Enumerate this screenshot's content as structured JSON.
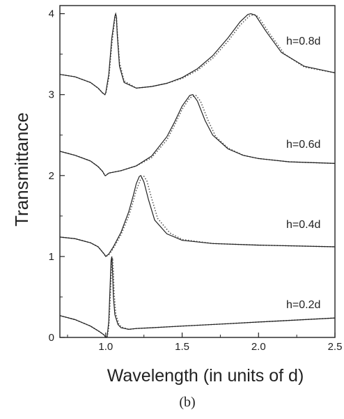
{
  "chart_data": {
    "type": "line",
    "xlabel": "Wavelength (in units of d)",
    "ylabel": "Transmittance",
    "xlim": [
      0.7,
      2.5
    ],
    "ylim": [
      0,
      4.1
    ],
    "x_ticks": [
      1.0,
      1.5,
      2.0,
      2.5
    ],
    "x_tick_labels": [
      "1.0",
      "1.5",
      "2.0",
      "2.5"
    ],
    "y_ticks": [
      0,
      1,
      2,
      3,
      4
    ],
    "y_tick_labels": [
      "0",
      "1",
      "2",
      "3",
      "4"
    ],
    "panel_label": "(b)",
    "grid": false,
    "styles": {
      "solid": "#222222",
      "dotted": "#555555"
    },
    "series": [
      {
        "label": "h=0.2d",
        "solid": {
          "x": [
            0.7,
            0.8,
            0.9,
            0.96,
            0.99,
            1.0,
            1.005,
            1.01,
            1.02,
            1.03,
            1.035,
            1.04,
            1.045,
            1.05,
            1.06,
            1.08,
            1.1,
            1.15,
            1.2,
            1.3,
            1.5,
            1.8,
            2.0,
            2.2,
            2.5
          ],
          "y": [
            0.27,
            0.22,
            0.14,
            0.07,
            0.03,
            0.0,
            0.0,
            0.02,
            0.2,
            0.7,
            0.95,
            1.0,
            0.8,
            0.5,
            0.28,
            0.16,
            0.12,
            0.1,
            0.11,
            0.12,
            0.14,
            0.17,
            0.19,
            0.21,
            0.24
          ]
        },
        "dotted": {
          "x": [
            0.7,
            0.8,
            0.9,
            0.96,
            0.99,
            1.0,
            1.005,
            1.01,
            1.02,
            1.03,
            1.04,
            1.045,
            1.05,
            1.055,
            1.065,
            1.085,
            1.1,
            1.15,
            1.2,
            1.3,
            1.5,
            1.8,
            2.0,
            2.2,
            2.5
          ],
          "y": [
            0.27,
            0.22,
            0.14,
            0.07,
            0.03,
            0.0,
            0.0,
            0.01,
            0.12,
            0.5,
            0.92,
            0.98,
            0.82,
            0.55,
            0.3,
            0.17,
            0.13,
            0.1,
            0.11,
            0.12,
            0.14,
            0.17,
            0.19,
            0.21,
            0.24
          ]
        }
      },
      {
        "label": "h=0.4d",
        "solid": {
          "x": [
            0.7,
            0.8,
            0.9,
            0.95,
            0.99,
            1.0,
            1.02,
            1.05,
            1.1,
            1.15,
            1.18,
            1.2,
            1.22,
            1.23,
            1.25,
            1.28,
            1.32,
            1.4,
            1.5,
            1.7,
            2.0,
            2.5
          ],
          "y": [
            1.24,
            1.22,
            1.17,
            1.12,
            1.03,
            1.0,
            1.03,
            1.12,
            1.3,
            1.55,
            1.75,
            1.9,
            1.99,
            2.0,
            1.92,
            1.7,
            1.45,
            1.28,
            1.2,
            1.16,
            1.14,
            1.12
          ]
        },
        "dotted": {
          "x": [
            0.7,
            0.8,
            0.9,
            0.95,
            0.99,
            1.0,
            1.02,
            1.05,
            1.1,
            1.15,
            1.18,
            1.2,
            1.23,
            1.25,
            1.27,
            1.3,
            1.34,
            1.42,
            1.5,
            1.7,
            2.0,
            2.5
          ],
          "y": [
            1.24,
            1.22,
            1.17,
            1.12,
            1.03,
            1.0,
            1.02,
            1.1,
            1.27,
            1.5,
            1.68,
            1.82,
            1.96,
            1.99,
            1.93,
            1.72,
            1.47,
            1.29,
            1.21,
            1.16,
            1.14,
            1.12
          ]
        }
      },
      {
        "label": "h=0.6d",
        "solid": {
          "x": [
            0.7,
            0.8,
            0.9,
            0.95,
            0.98,
            0.995,
            1.0,
            1.02,
            1.1,
            1.2,
            1.3,
            1.4,
            1.45,
            1.5,
            1.55,
            1.57,
            1.6,
            1.65,
            1.7,
            1.8,
            1.9,
            2.0,
            2.2,
            2.5
          ],
          "y": [
            2.3,
            2.25,
            2.18,
            2.11,
            2.05,
            2.0,
            2.0,
            2.03,
            2.06,
            2.12,
            2.24,
            2.48,
            2.66,
            2.86,
            2.99,
            3.0,
            2.92,
            2.68,
            2.5,
            2.33,
            2.25,
            2.21,
            2.17,
            2.15
          ]
        },
        "dotted": {
          "x": [
            0.7,
            0.8,
            0.9,
            0.95,
            0.98,
            0.995,
            1.0,
            1.02,
            1.1,
            1.2,
            1.3,
            1.4,
            1.45,
            1.5,
            1.55,
            1.59,
            1.62,
            1.67,
            1.72,
            1.8,
            1.9,
            2.0,
            2.2,
            2.5
          ],
          "y": [
            2.3,
            2.25,
            2.18,
            2.11,
            2.05,
            2.0,
            2.0,
            2.03,
            2.06,
            2.12,
            2.22,
            2.44,
            2.62,
            2.82,
            2.96,
            2.99,
            2.92,
            2.68,
            2.48,
            2.34,
            2.25,
            2.21,
            2.17,
            2.15
          ]
        }
      },
      {
        "label": "h=0.8d",
        "solid": {
          "x": [
            0.7,
            0.8,
            0.9,
            0.95,
            0.98,
            0.995,
            1.0,
            1.02,
            1.04,
            1.06,
            1.065,
            1.07,
            1.075,
            1.09,
            1.12,
            1.2,
            1.3,
            1.4,
            1.5,
            1.6,
            1.7,
            1.8,
            1.88,
            1.93,
            1.95,
            1.98,
            2.05,
            2.15,
            2.3,
            2.5
          ],
          "y": [
            3.25,
            3.22,
            3.15,
            3.08,
            3.02,
            3.0,
            3.02,
            3.25,
            3.7,
            3.97,
            4.0,
            3.96,
            3.75,
            3.35,
            3.15,
            3.08,
            3.1,
            3.14,
            3.21,
            3.32,
            3.48,
            3.7,
            3.9,
            3.99,
            4.0,
            3.98,
            3.78,
            3.52,
            3.35,
            3.27
          ]
        },
        "dotted": {
          "x": [
            0.7,
            0.8,
            0.9,
            0.95,
            0.98,
            0.995,
            1.0,
            1.02,
            1.04,
            1.06,
            1.065,
            1.07,
            1.075,
            1.09,
            1.12,
            1.2,
            1.3,
            1.4,
            1.5,
            1.6,
            1.7,
            1.8,
            1.88,
            1.94,
            1.97,
            2.0,
            2.07,
            2.17,
            2.3,
            2.5
          ],
          "y": [
            3.25,
            3.22,
            3.15,
            3.08,
            3.02,
            3.0,
            3.01,
            3.2,
            3.62,
            3.94,
            3.98,
            3.97,
            3.8,
            3.4,
            3.17,
            3.08,
            3.1,
            3.14,
            3.2,
            3.3,
            3.45,
            3.66,
            3.86,
            3.97,
            3.99,
            3.96,
            3.76,
            3.5,
            3.34,
            3.27
          ]
        }
      }
    ]
  }
}
